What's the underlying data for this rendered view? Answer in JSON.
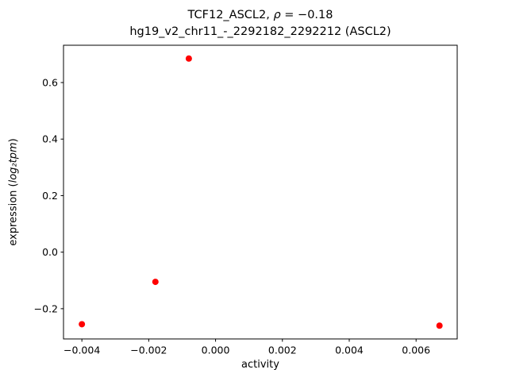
{
  "title": {
    "prefix": "TCF12_ASCL2, ",
    "rho_symbol": "ρ",
    "rho_rest": " = −0.18",
    "line2": "hg19_v2_chr11_-_2292182_2292212 (ASCL2)"
  },
  "axes": {
    "xlabel": "activity",
    "ylabel_prefix": "expression (",
    "ylabel_math": "log₂tpm",
    "ylabel_suffix": ")"
  },
  "chart_data": {
    "type": "scatter",
    "title": "TCF12_ASCL2, ρ = −0.18",
    "subtitle": "hg19_v2_chr11_-_2292182_2292212 (ASCL2)",
    "xlabel": "activity",
    "ylabel": "expression (log2tpm)",
    "xlim": [
      -0.00455,
      0.00723
    ],
    "ylim": [
      -0.307,
      0.732
    ],
    "xticks": [
      -0.004,
      -0.002,
      0.0,
      0.002,
      0.004,
      0.006
    ],
    "xtick_labels": [
      "−0.004",
      "−0.002",
      "0.000",
      "0.002",
      "0.004",
      "0.006"
    ],
    "yticks": [
      -0.2,
      0.0,
      0.2,
      0.4,
      0.6
    ],
    "ytick_labels": [
      "−0.2",
      "0.0",
      "0.2",
      "0.4",
      "0.6"
    ],
    "grid": false,
    "legend": "none",
    "marker_color": "#ff0000",
    "marker_radius": 4,
    "points": [
      {
        "x": -0.004,
        "y": -0.255
      },
      {
        "x": -0.0018,
        "y": -0.105
      },
      {
        "x": -0.0008,
        "y": 0.685
      },
      {
        "x": 0.0067,
        "y": -0.26
      }
    ]
  }
}
